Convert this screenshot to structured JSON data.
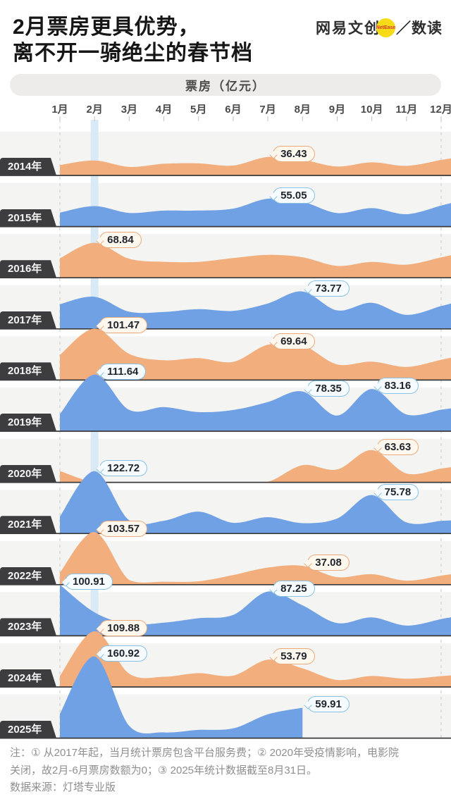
{
  "header": {
    "title_line1": "2月票房更具优势，",
    "title_line2": "离不开一骑绝尘的春节档",
    "logo": {
      "brand": "网易文创",
      "badge": "NetEase",
      "tail": "／数读"
    }
  },
  "unit_bar": "票房（亿元）",
  "notes": {
    "line1": "注：① 从2017年起，当月统计票房包含平台服务费；② 2020年受疫情影响，电影院",
    "line2": "关闭，故2月-6月票房数额为0；③ 2025年统计数据截至8月31日。",
    "source": "数据来源：灯塔专业版"
  },
  "colors": {
    "orange": "#F2AE7C",
    "blue": "#70A1E5",
    "band": "#F4F4F2",
    "baseline": "#3A3A3C",
    "feb_stripe": "#D9EAF6",
    "dashed": "#C9C9C9",
    "tick": "#C2C2C2",
    "label_bg": "#3D3D3F"
  },
  "chart_data": {
    "type": "area",
    "title": "票房（亿元）",
    "ylabel": "票房",
    "unit": "亿元",
    "x_labels": [
      "1月",
      "2月",
      "3月",
      "4月",
      "5月",
      "6月",
      "7月",
      "8月",
      "9月",
      "10月",
      "11月",
      "12月"
    ],
    "highlight_month": "2月",
    "legend_position": "none",
    "grid": "vertical-faint",
    "series": [
      {
        "year": "2014年",
        "color": "orange",
        "values": [
          20.5,
          29.5,
          16.8,
          23.0,
          23.8,
          19.6,
          36.43,
          31.0,
          17.6,
          25.9,
          18.9,
          30.5
        ],
        "annotations": [
          {
            "month": 7,
            "label": "36.43"
          }
        ]
      },
      {
        "year": "2015年",
        "color": "blue",
        "values": [
          27.5,
          40.4,
          27.0,
          31.5,
          31.6,
          35.4,
          55.05,
          48.9,
          26.6,
          36.4,
          24.5,
          41.5
        ],
        "annotations": [
          {
            "month": 7,
            "label": "55.05"
          }
        ]
      },
      {
        "year": "2016年",
        "color": "orange",
        "values": [
          38.3,
          68.84,
          37.5,
          31.4,
          31.2,
          38.8,
          45.2,
          40.4,
          23.4,
          31.2,
          25.8,
          40.3
        ],
        "annotations": [
          {
            "month": 2,
            "label": "68.84"
          }
        ]
      },
      {
        "year": "2017年",
        "color": "blue",
        "values": [
          48.7,
          63.4,
          33.9,
          33.5,
          38.9,
          35.6,
          50.2,
          73.77,
          36.5,
          51.5,
          27.7,
          45.1
        ],
        "annotations": [
          {
            "month": 8,
            "label": "73.77"
          }
        ]
      },
      {
        "year": "2018年",
        "color": "orange",
        "values": [
          49.5,
          101.47,
          51.5,
          39.0,
          43.2,
          35.9,
          69.64,
          68.2,
          30.9,
          36.3,
          25.9,
          40.0
        ],
        "annotations": [
          {
            "month": 2,
            "label": "101.47"
          },
          {
            "month": 7,
            "label": "69.64"
          }
        ]
      },
      {
        "year": "2019年",
        "color": "blue",
        "values": [
          33.7,
          111.64,
          41.9,
          47.5,
          37.7,
          41.8,
          57.5,
          78.35,
          30.9,
          83.16,
          33.0,
          42.4
        ],
        "annotations": [
          {
            "month": 2,
            "label": "111.64"
          },
          {
            "month": 8,
            "label": "78.35"
          },
          {
            "month": 10,
            "label": "83.16"
          }
        ]
      },
      {
        "year": "2020年",
        "color": "orange",
        "values": [
          22.4,
          0,
          0,
          0,
          0,
          0,
          1.2,
          33.9,
          25.4,
          63.63,
          17.5,
          27.2
        ],
        "annotations": [
          {
            "month": 10,
            "label": "63.63"
          }
        ]
      },
      {
        "year": "2021年",
        "color": "blue",
        "values": [
          33.4,
          122.72,
          26.1,
          25.2,
          43.2,
          21.1,
          32.2,
          20.4,
          29.6,
          75.78,
          21.9,
          25.0
        ],
        "annotations": [
          {
            "month": 2,
            "label": "122.72"
          },
          {
            "month": 10,
            "label": "75.78"
          }
        ]
      },
      {
        "year": "2022年",
        "color": "orange",
        "values": [
          23.8,
          103.57,
          9.1,
          5.9,
          6.7,
          19.0,
          33.7,
          37.08,
          14.8,
          20.7,
          7.9,
          17.8
        ],
        "annotations": [
          {
            "month": 2,
            "label": "103.57"
          },
          {
            "month": 8,
            "label": "37.08"
          }
        ]
      },
      {
        "year": "2023年",
        "color": "blue",
        "values": [
          100.91,
          46.2,
          23.1,
          25.9,
          34.7,
          41.2,
          87.25,
          60.1,
          25.1,
          36.3,
          20.2,
          33.0
        ],
        "annotations": [
          {
            "month": 1,
            "label": "100.91"
          },
          {
            "month": 7,
            "label": "87.25"
          }
        ]
      },
      {
        "year": "2024年",
        "color": "orange",
        "values": [
          21.7,
          109.88,
          26.2,
          20.1,
          27.2,
          22.3,
          53.79,
          36.7,
          13.9,
          21.6,
          16.3,
          21.4
        ],
        "annotations": [
          {
            "month": 2,
            "label": "109.88"
          },
          {
            "month": 7,
            "label": "53.79"
          }
        ]
      },
      {
        "year": "2025年",
        "color": "blue",
        "partial": true,
        "values": [
          47.8,
          160.92,
          24.0,
          11.3,
          16.2,
          19.1,
          47.0,
          59.91
        ],
        "annotations": [
          {
            "month": 2,
            "label": "160.92"
          },
          {
            "month": 8,
            "label": "59.91"
          }
        ]
      }
    ]
  }
}
